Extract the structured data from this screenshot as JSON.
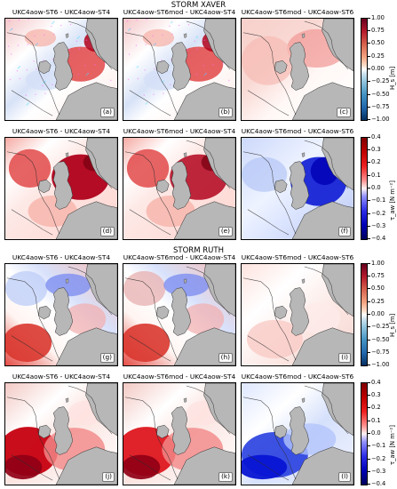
{
  "storm_titles": {
    "xaver": "STORM XAVER",
    "ruth": "STORM RUTH"
  },
  "panels": [
    {
      "title": "UKC4aow-ST6 - UKC4aow-ST4",
      "label": "(a)",
      "variable": "Hs",
      "pattern": "a"
    },
    {
      "title": "UKC4aow-ST6mod - UKC4aow-ST4",
      "label": "(b)",
      "variable": "Hs",
      "pattern": "b"
    },
    {
      "title": "UKC4aow-ST6mod - UKC4aow-ST6",
      "label": "(c)",
      "variable": "Hs",
      "pattern": "c"
    },
    {
      "title": "UKC4aow-ST6 - UKC4aow-ST4",
      "label": "(d)",
      "variable": "tau",
      "pattern": "d"
    },
    {
      "title": "UKC4aow-ST6mod - UKC4aow-ST4",
      "label": "(e)",
      "variable": "tau",
      "pattern": "e"
    },
    {
      "title": "UKC4aow-ST6mod - UKC4aow-ST6",
      "label": "(f)",
      "variable": "tau",
      "pattern": "f"
    },
    {
      "title": "UKC4aow-ST6 - UKC4aow-ST4",
      "label": "(g)",
      "variable": "Hs",
      "pattern": "g"
    },
    {
      "title": "UKC4aow-ST6mod - UKC4aow-ST4",
      "label": "(h)",
      "variable": "Hs",
      "pattern": "h"
    },
    {
      "title": "UKC4aow-ST6mod - UKC4aow-ST6",
      "label": "(i)",
      "variable": "Hs",
      "pattern": "i"
    },
    {
      "title": "UKC4aow-ST6 - UKC4aow-ST4",
      "label": "(j)",
      "variable": "tau",
      "pattern": "j"
    },
    {
      "title": "UKC4aow-ST6mod - UKC4aow-ST4",
      "label": "(k)",
      "variable": "tau",
      "pattern": "k"
    },
    {
      "title": "UKC4aow-ST6mod - UKC4aow-ST6",
      "label": "(l)",
      "variable": "tau",
      "pattern": "l"
    }
  ],
  "colorbars": [
    {
      "variable": "Hs",
      "label": "H_s [m]",
      "ticks": [
        "1.00",
        "0.75",
        "0.50",
        "0.25",
        "0.00",
        "−0.25",
        "−0.50",
        "−0.75",
        "−1.00"
      ]
    },
    {
      "variable": "tau",
      "label": "τ_aw [N m⁻²]",
      "ticks": [
        "0.4",
        "0.3",
        "0.2",
        "0.1",
        "0.0",
        "−0.1",
        "−0.2",
        "−0.3",
        "−0.4"
      ]
    },
    {
      "variable": "Hs",
      "label": "H_s [m]",
      "ticks": [
        "1.00",
        "0.75",
        "0.50",
        "0.25",
        "0.00",
        "−0.25",
        "−0.50",
        "−0.75",
        "−1.00"
      ]
    },
    {
      "variable": "tau",
      "label": "τ_aw [N m⁻²]",
      "ticks": [
        "0.4",
        "0.3",
        "0.2",
        "0.1",
        "0.0",
        "−0.1",
        "−0.2",
        "−0.3",
        "−0.4"
      ]
    }
  ],
  "colors": {
    "land": "#b7b7b7",
    "contour": "#2b2b2b",
    "positive_strong": "#b40018",
    "positive_weak": "#f6b0a6",
    "neutral": "#ffffff",
    "negative_weak": "#b7c8f2",
    "negative_strong": "#0918d6"
  }
}
